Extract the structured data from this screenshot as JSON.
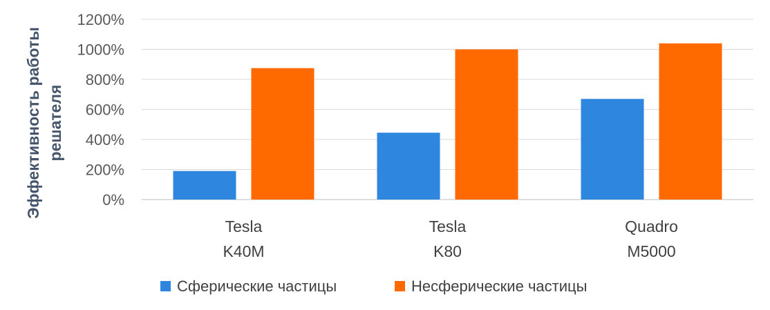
{
  "chart_data": {
    "type": "bar",
    "ylabel_lines": [
      "Эффективность работы",
      "решателя"
    ],
    "categories": [
      [
        "Tesla",
        "K40M"
      ],
      [
        "Tesla",
        "K80"
      ],
      [
        "Quadro",
        "M5000"
      ]
    ],
    "series": [
      {
        "name": "Сферические частицы",
        "color": "#2e86de",
        "values": [
          190,
          445,
          670
        ]
      },
      {
        "name": "Несферические частицы",
        "color": "#ff6a00",
        "values": [
          875,
          1000,
          1040
        ]
      }
    ],
    "ylim": [
      0,
      1200
    ],
    "yticks": [
      "0%",
      "200%",
      "400%",
      "600%",
      "800%",
      "1000%",
      "1200%"
    ],
    "grid": true,
    "legend_position": "bottom"
  }
}
